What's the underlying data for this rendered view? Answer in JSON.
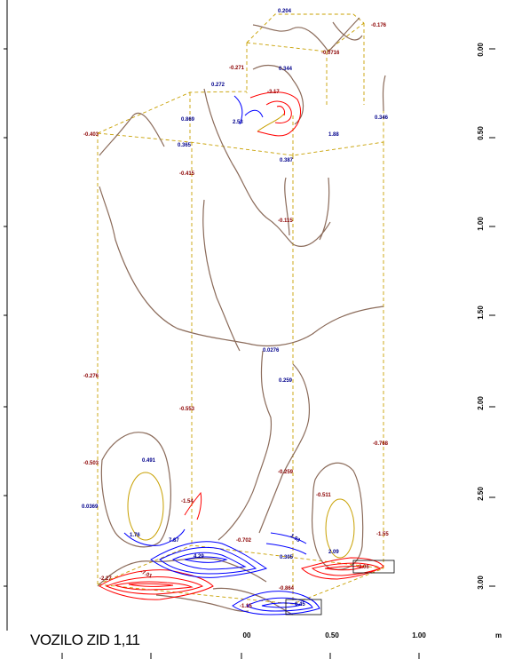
{
  "caption": "VOZILO ZID 1,11",
  "axis_unit": "m",
  "bottom_ticks": [
    "00",
    "0.50",
    "1.00"
  ],
  "right_ticks": [
    "0.00",
    "0.50",
    "1.00",
    "1.50",
    "2.00",
    "2.50",
    "3.00"
  ],
  "colors": {
    "negative": "#ff0000",
    "positive": "#0000ff",
    "zero": "#8b6b5a",
    "outline": "#c8a000",
    "neg_label": "#8b0000",
    "pos_label": "#00008b"
  },
  "labels": {
    "l01": "0.204",
    "l02": "-0.176",
    "l03": "-0.0716",
    "l04": "-0.271",
    "l05": "0.344",
    "l06": "0.272",
    "l07": "-3.17",
    "l08": "0.869",
    "l09": "2.53",
    "l10": "0.346",
    "l11": "-0.403",
    "l12": "0.365",
    "l13": "1.88",
    "l14": "0.387",
    "l15": "-0.415",
    "l16": "-0.115",
    "l17": "0.0276",
    "l18": "-0.276",
    "l19": "0.259",
    "l20": "-0.553",
    "l21": "-0.768",
    "l22": "0.491",
    "l23": "-0.503",
    "l24": "-0.259",
    "l25": "-0.511",
    "l26": "0.0369",
    "l27": "-1.54",
    "l28": "-1.55",
    "l29": "1.76",
    "l30": "7.87",
    "l31": "4.29",
    "l32": "-0.702",
    "l33": "1.03",
    "l34": "2.09",
    "l35": "-2.06",
    "l36": "0.305",
    "l37": "-2.27",
    "l38": "-7.01",
    "l39": "-0.864",
    "l40": "-1.15",
    "l41": "6.45"
  }
}
